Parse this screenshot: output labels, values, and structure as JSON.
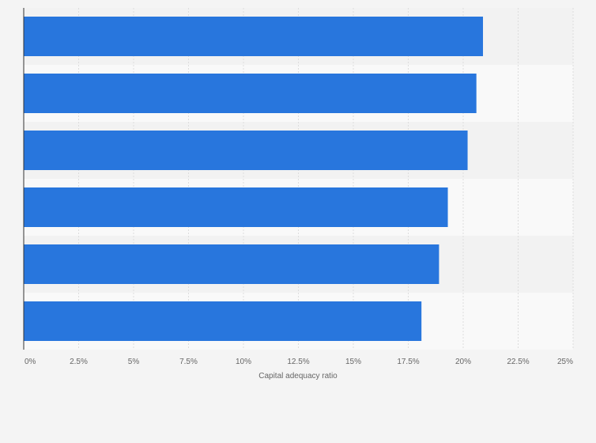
{
  "chart_data": {
    "type": "bar",
    "orientation": "horizontal",
    "categories": [
      "",
      "",
      "",
      "",
      "",
      ""
    ],
    "values": [
      20.9,
      20.6,
      20.2,
      19.3,
      18.9,
      18.1
    ],
    "xlabel": "Capital adequacy ratio",
    "ylabel": "",
    "xlim": [
      0,
      25
    ],
    "xticks": [
      0,
      2.5,
      5,
      7.5,
      10,
      12.5,
      15,
      17.5,
      20,
      22.5,
      25
    ],
    "xtick_labels": [
      "0%",
      "2.5%",
      "5%",
      "7.5%",
      "10%",
      "12.5%",
      "15%",
      "17.5%",
      "20%",
      "22.5%",
      "25%"
    ],
    "grid": true,
    "legend": "none"
  },
  "colors": {
    "bar": "#2876dd",
    "background": "#f4f4f4",
    "band_light": "#f9f9f9",
    "band_dark": "#f2f2f2",
    "grid": "#dddddd",
    "axis": "#333333",
    "text": "#666666"
  }
}
